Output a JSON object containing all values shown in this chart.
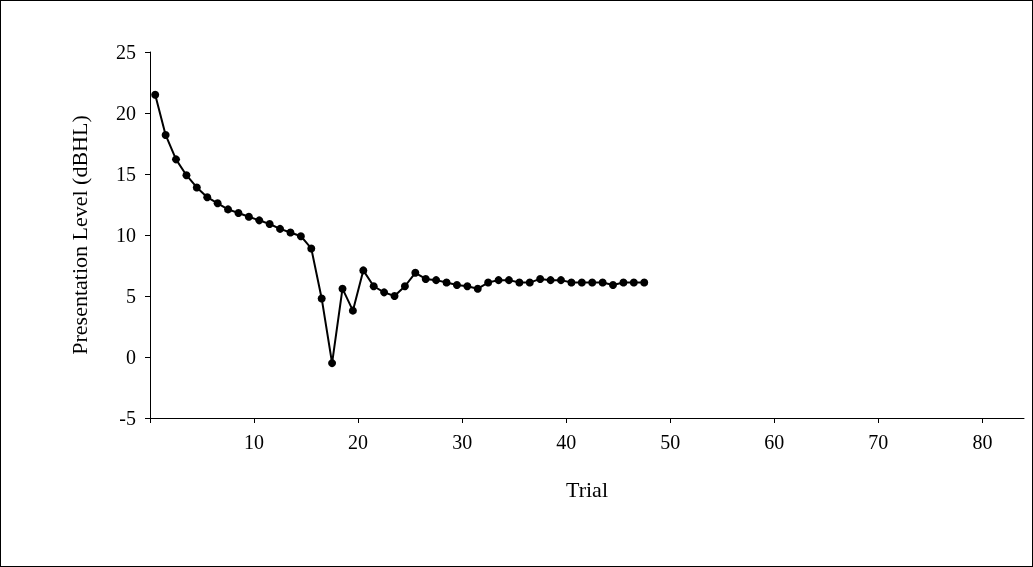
{
  "chart_data": {
    "type": "line",
    "xlabel": "Trial",
    "ylabel": "Presentation Level (dBHL)",
    "x": [
      0.5,
      1.5,
      2.5,
      3.5,
      4.5,
      5.5,
      6.5,
      7.5,
      8.5,
      9.5,
      10.5,
      11.5,
      12.5,
      13.5,
      14.5,
      15.5,
      16.5,
      17.5,
      18.5,
      19.5,
      20.5,
      21.5,
      22.5,
      23.5,
      24.5,
      25.5,
      26.5,
      27.5,
      28.5,
      29.5,
      30.5,
      31.5,
      32.5,
      33.5,
      34.5,
      35.5,
      36.5,
      37.5,
      38.5,
      39.5,
      40.5,
      41.5,
      42.5,
      43.5,
      44.5,
      45.5,
      46.5,
      47.5
    ],
    "series": [
      {
        "color": "#000000",
        "values": [
          21.5,
          18.2,
          16.2,
          14.9,
          13.9,
          13.1,
          12.6,
          12.1,
          11.8,
          11.5,
          11.2,
          10.9,
          10.5,
          10.2,
          9.9,
          8.9,
          4.8,
          -0.5,
          5.6,
          3.8,
          7.1,
          5.8,
          5.3,
          5.0,
          5.8,
          6.9,
          6.4,
          6.3,
          6.1,
          5.9,
          5.8,
          5.6,
          6.1,
          6.3,
          6.3,
          6.1,
          6.1,
          6.4,
          6.3,
          6.3,
          6.1,
          6.1,
          6.1,
          6.1,
          5.9,
          6.1,
          6.1,
          6.1
        ]
      }
    ],
    "xlim": [
      0,
      84
    ],
    "xticks": [
      {
        "value": 0,
        "label": null
      },
      10,
      20,
      30,
      40,
      50,
      60,
      70,
      80
    ],
    "ylim": [
      -5,
      25
    ],
    "yticks": [
      -5,
      0,
      5,
      10,
      15,
      20,
      25
    ],
    "grid": false,
    "marker": "circle",
    "line_style": "solid"
  }
}
